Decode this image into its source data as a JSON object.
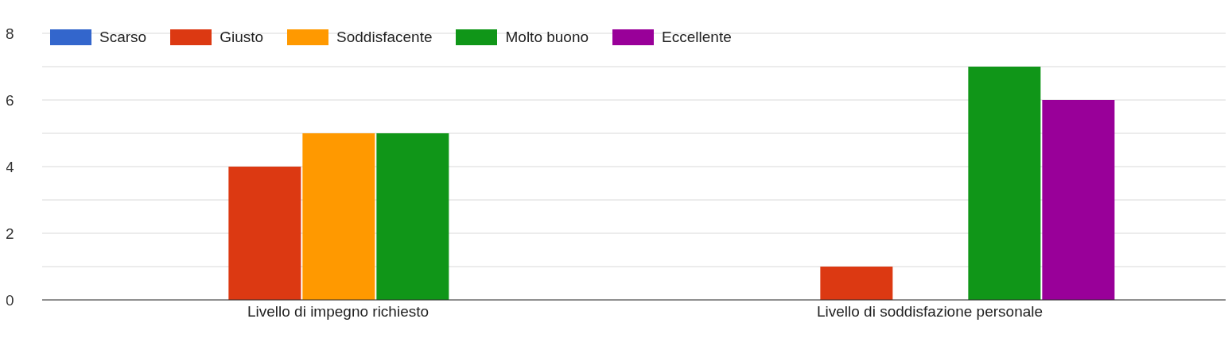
{
  "chart_data": {
    "type": "bar",
    "categories": [
      "Livello di impegno richiesto",
      "Livello di soddisfazione personale"
    ],
    "series": [
      {
        "name": "Scarso",
        "color": "#3366cc",
        "values": [
          0,
          0
        ]
      },
      {
        "name": "Giusto",
        "color": "#dc3912",
        "values": [
          4,
          1
        ]
      },
      {
        "name": "Soddisfacente",
        "color": "#ff9900",
        "values": [
          5,
          0
        ]
      },
      {
        "name": "Molto buono",
        "color": "#109618",
        "values": [
          5,
          7
        ]
      },
      {
        "name": "Eccellente",
        "color": "#990099",
        "values": [
          0,
          6
        ]
      }
    ],
    "ylim": [
      0,
      8
    ],
    "yticks": [
      0,
      {
        "value": 1,
        "label": null
      },
      2,
      {
        "value": 3,
        "label": null
      },
      4,
      {
        "value": 5,
        "label": null
      },
      6,
      {
        "value": 7,
        "label": null
      },
      8
    ],
    "grid": "y",
    "legend": "top left"
  }
}
